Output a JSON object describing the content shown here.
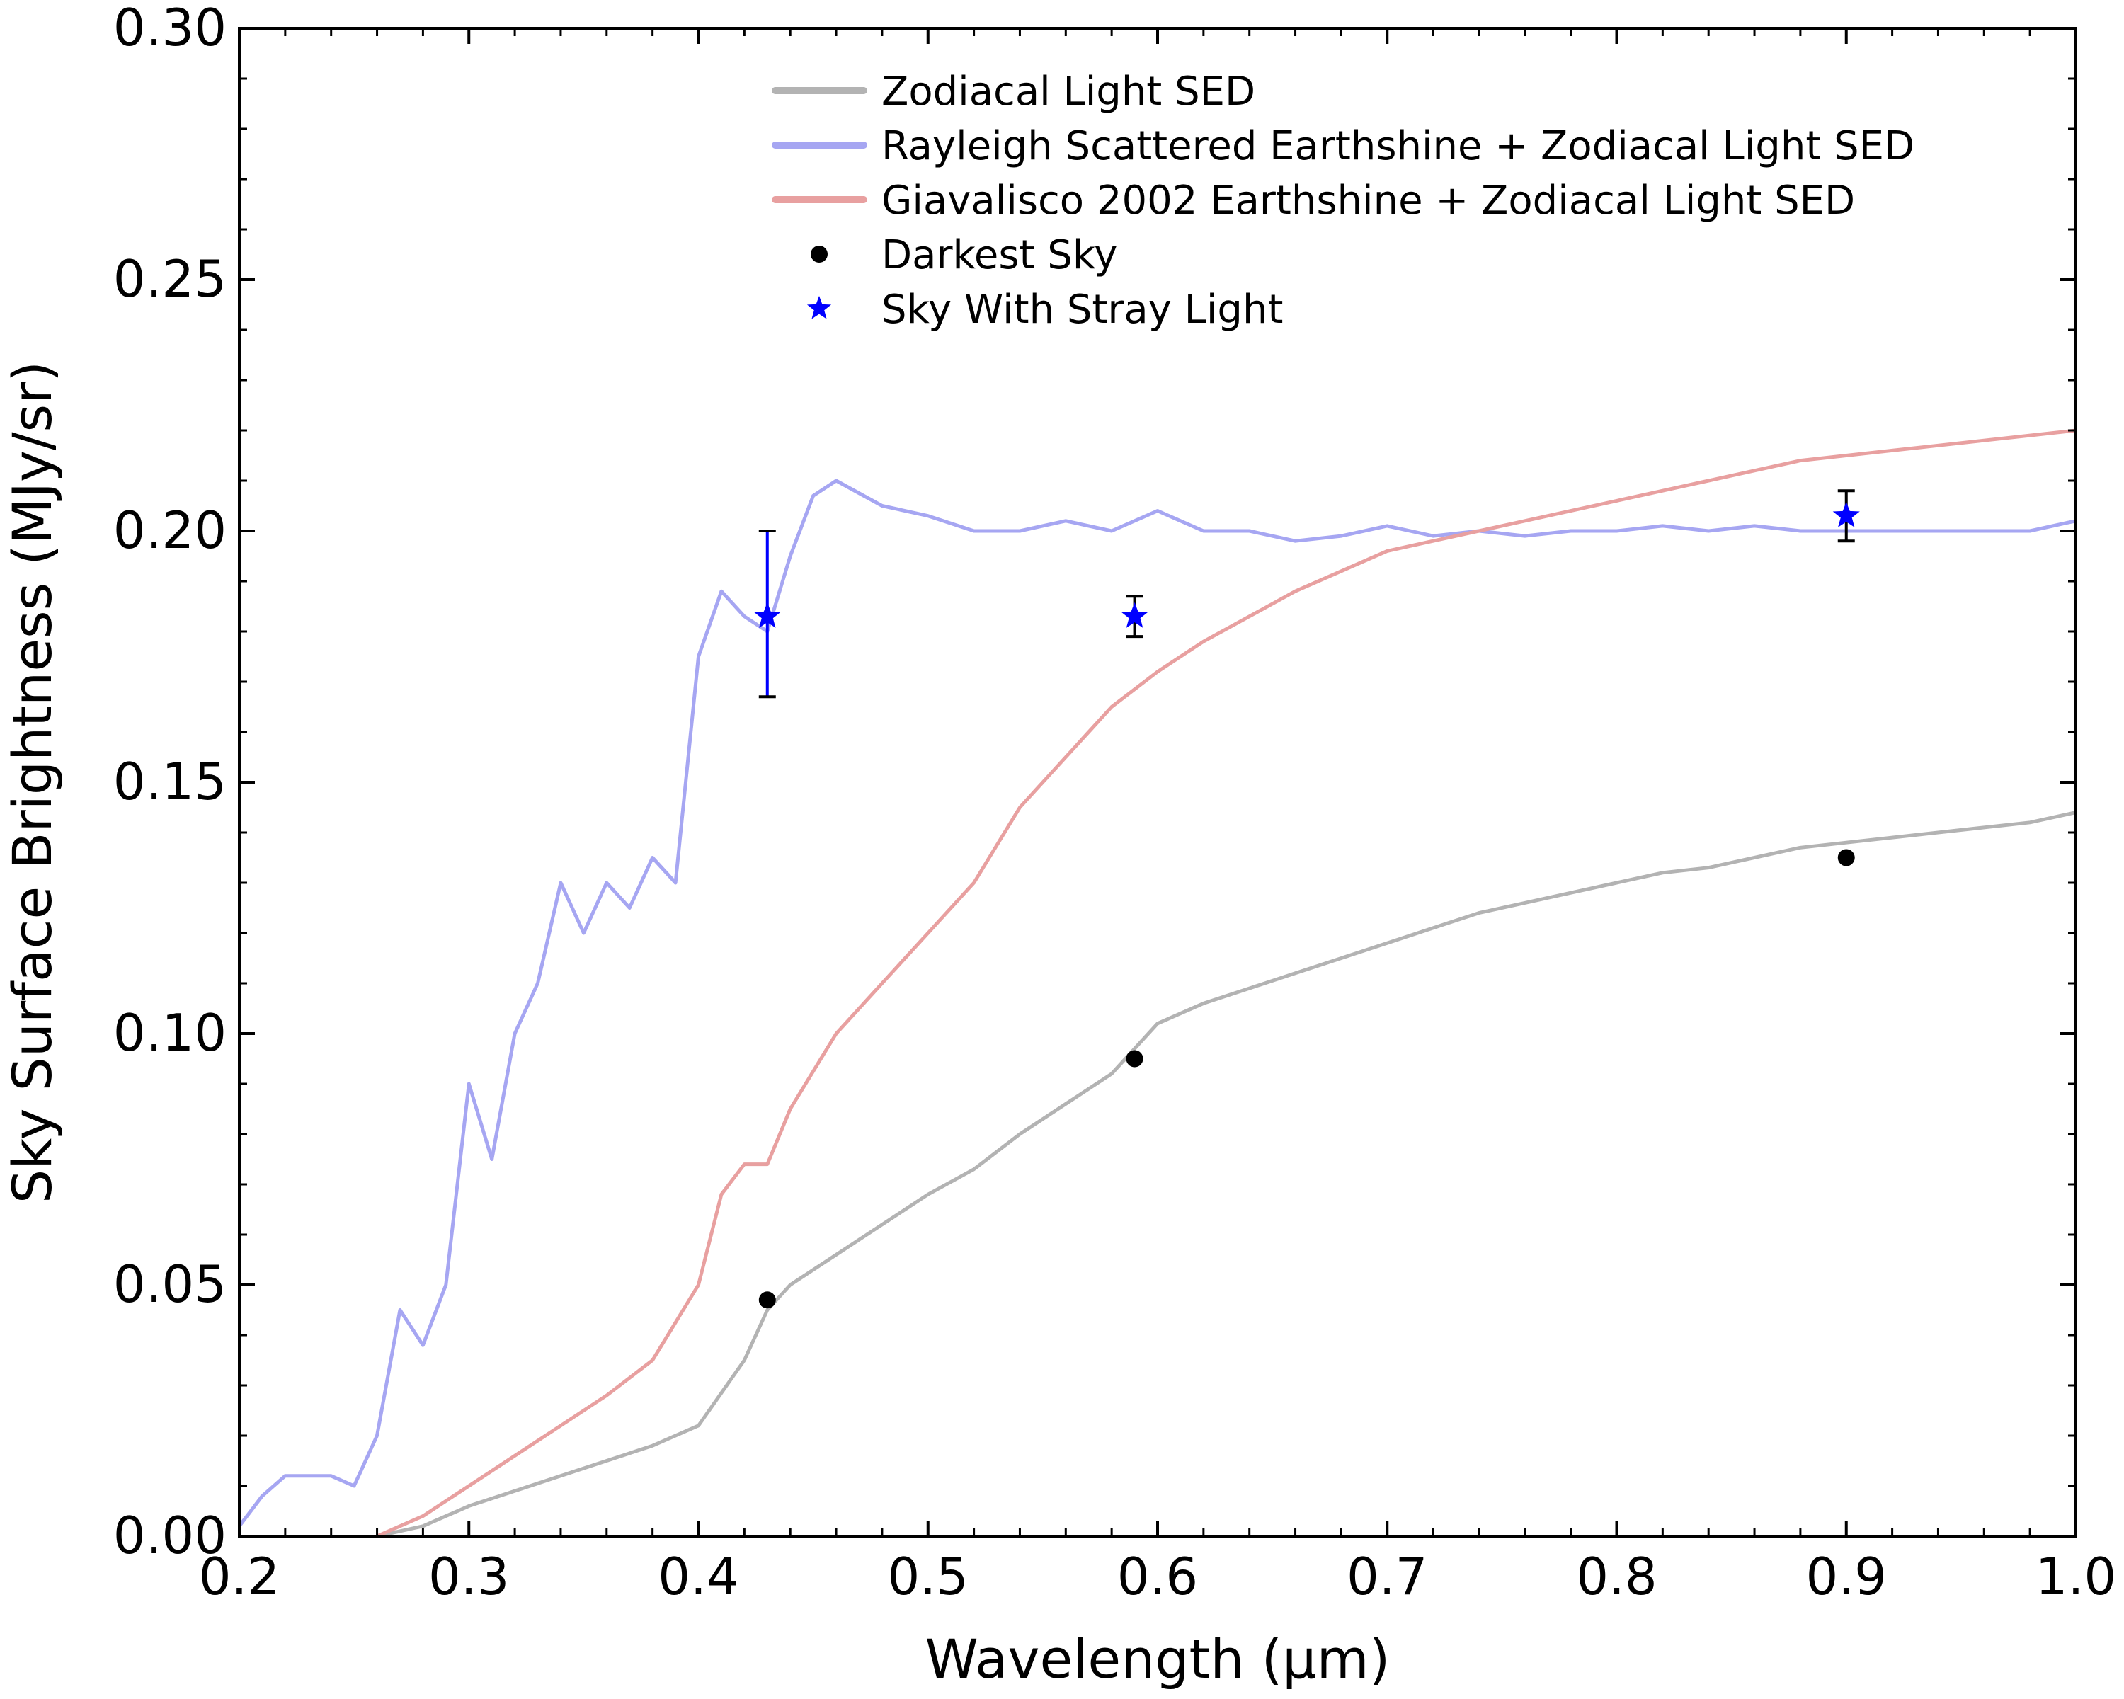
{
  "chart_data": {
    "type": "line",
    "xlabel": "Wavelength (µm)",
    "ylabel": "Sky Surface Brightness (MJy/sr)",
    "xlim": [
      0.2,
      1.0
    ],
    "ylim": [
      0.0,
      0.3
    ],
    "xticks": [
      0.2,
      0.3,
      0.4,
      0.5,
      0.6,
      0.7,
      0.8,
      0.9,
      1.0
    ],
    "xtick_labels": [
      "0.2",
      "0.3",
      "0.4",
      "0.5",
      "0.6",
      "0.7",
      "0.8",
      "0.9",
      "1.0"
    ],
    "yticks": [
      0.0,
      0.05,
      0.1,
      0.15,
      0.2,
      0.25,
      0.3
    ],
    "ytick_labels": [
      "0.00",
      "0.05",
      "0.10",
      "0.15",
      "0.20",
      "0.25",
      "0.30"
    ],
    "legend_position": "top-center",
    "series": [
      {
        "name": "Zodiacal Light SED",
        "color": "#b3b3b3",
        "x": [
          0.26,
          0.28,
          0.3,
          0.32,
          0.34,
          0.36,
          0.38,
          0.4,
          0.42,
          0.43,
          0.44,
          0.46,
          0.48,
          0.5,
          0.52,
          0.54,
          0.56,
          0.58,
          0.6,
          0.62,
          0.64,
          0.66,
          0.68,
          0.7,
          0.72,
          0.74,
          0.76,
          0.78,
          0.8,
          0.82,
          0.84,
          0.85,
          0.86,
          0.88,
          0.9,
          0.92,
          0.94,
          0.96,
          0.98,
          1.0
        ],
        "y": [
          0.0,
          0.002,
          0.006,
          0.009,
          0.012,
          0.015,
          0.018,
          0.022,
          0.035,
          0.045,
          0.05,
          0.056,
          0.062,
          0.068,
          0.073,
          0.08,
          0.086,
          0.092,
          0.102,
          0.106,
          0.109,
          0.112,
          0.115,
          0.118,
          0.121,
          0.124,
          0.126,
          0.128,
          0.13,
          0.132,
          0.133,
          0.134,
          0.135,
          0.137,
          0.138,
          0.139,
          0.14,
          0.141,
          0.142,
          0.144
        ]
      },
      {
        "name": "Rayleigh Scattered Earthshine + Zodiacal Light SED",
        "color": "#a6a6f2",
        "x": [
          0.2,
          0.21,
          0.22,
          0.24,
          0.25,
          0.26,
          0.27,
          0.28,
          0.29,
          0.3,
          0.31,
          0.32,
          0.33,
          0.34,
          0.35,
          0.36,
          0.37,
          0.38,
          0.39,
          0.4,
          0.41,
          0.42,
          0.43,
          0.44,
          0.45,
          0.46,
          0.48,
          0.5,
          0.52,
          0.54,
          0.56,
          0.58,
          0.6,
          0.62,
          0.64,
          0.66,
          0.68,
          0.7,
          0.72,
          0.74,
          0.76,
          0.78,
          0.8,
          0.82,
          0.84,
          0.86,
          0.88,
          0.9,
          0.92,
          0.94,
          0.96,
          0.98,
          1.0
        ],
        "y": [
          0.002,
          0.008,
          0.012,
          0.012,
          0.01,
          0.02,
          0.045,
          0.038,
          0.05,
          0.09,
          0.075,
          0.1,
          0.11,
          0.13,
          0.12,
          0.13,
          0.125,
          0.135,
          0.13,
          0.175,
          0.188,
          0.183,
          0.18,
          0.195,
          0.207,
          0.21,
          0.205,
          0.203,
          0.2,
          0.2,
          0.202,
          0.2,
          0.204,
          0.2,
          0.2,
          0.198,
          0.199,
          0.201,
          0.199,
          0.2,
          0.199,
          0.2,
          0.2,
          0.201,
          0.2,
          0.201,
          0.2,
          0.2,
          0.2,
          0.2,
          0.2,
          0.2,
          0.202
        ]
      },
      {
        "name": "Giavalisco 2002 Earthshine + Zodiacal Light SED",
        "color": "#e8a0a0",
        "x": [
          0.26,
          0.28,
          0.3,
          0.32,
          0.34,
          0.36,
          0.38,
          0.4,
          0.41,
          0.42,
          0.43,
          0.44,
          0.46,
          0.48,
          0.5,
          0.52,
          0.54,
          0.56,
          0.58,
          0.6,
          0.62,
          0.64,
          0.66,
          0.68,
          0.7,
          0.72,
          0.74,
          0.76,
          0.78,
          0.8,
          0.82,
          0.84,
          0.86,
          0.88,
          0.9,
          0.92,
          0.94,
          0.96,
          0.98,
          1.0
        ],
        "y": [
          0.0,
          0.004,
          0.01,
          0.016,
          0.022,
          0.028,
          0.035,
          0.05,
          0.068,
          0.074,
          0.074,
          0.085,
          0.1,
          0.11,
          0.12,
          0.13,
          0.145,
          0.155,
          0.165,
          0.172,
          0.178,
          0.183,
          0.188,
          0.192,
          0.196,
          0.198,
          0.2,
          0.202,
          0.204,
          0.206,
          0.208,
          0.21,
          0.212,
          0.214,
          0.215,
          0.216,
          0.217,
          0.218,
          0.219,
          0.22
        ]
      }
    ],
    "points": [
      {
        "name": "Darkest Sky",
        "color": "#000000",
        "marker": "circle",
        "x": [
          0.43,
          0.59,
          0.9
        ],
        "y": [
          0.047,
          0.095,
          0.135
        ]
      },
      {
        "name": "Sky With Stray Light",
        "color": "#0000ff",
        "marker": "star",
        "x": [
          0.43,
          0.59,
          0.9
        ],
        "y": [
          0.183,
          0.183,
          0.203
        ],
        "yerr_low": [
          0.016,
          0.004,
          0.005
        ],
        "yerr_high": [
          0.017,
          0.004,
          0.005
        ]
      }
    ]
  }
}
